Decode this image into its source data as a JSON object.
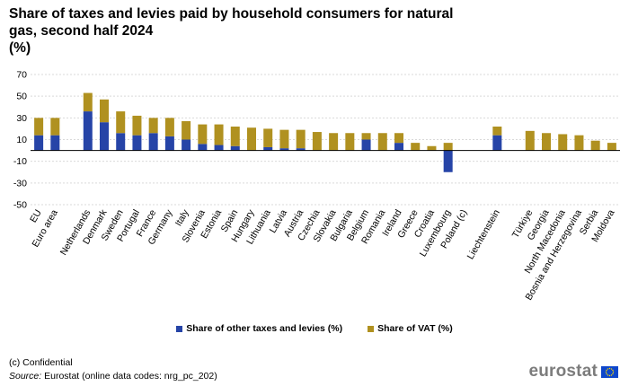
{
  "title": {
    "line1": "Share of taxes and levies paid by household consumers for natural",
    "line2": "gas, second half 2024",
    "line3": "(%)"
  },
  "legend": {
    "other_label": "Share of other taxes and levies (%)",
    "vat_label": "Share of VAT (%)"
  },
  "colors": {
    "other": "#2644a7",
    "vat": "#b09120",
    "grid": "#d9d9d9",
    "axis": "#000000",
    "logo_text": "#7c7c7c",
    "eu_flag": "#0e47cb"
  },
  "footnote": "(c) Confidential",
  "source": {
    "label": "Source:",
    "text": "Eurostat (online data codes: nrg_pc_202)"
  },
  "logo": {
    "text": "eurostat",
    "flag_icon": "eu-flag-icon"
  },
  "chart_data": {
    "type": "bar",
    "stacked": true,
    "categories": [
      "EU",
      "Euro area",
      "",
      "Netherlands",
      "Denmark",
      "Sweden",
      "Portugal",
      "France",
      "Germany",
      "Italy",
      "Slovenia",
      "Estonia",
      "Spain",
      "Hungary",
      "Lithuania",
      "Latvia",
      "Austria",
      "Czechia",
      "Slovakia",
      "Bulgaria",
      "Belgium",
      "Romania",
      "Ireland",
      "Greece",
      "Croatia",
      "Luxembourg",
      "Poland (c)",
      "",
      "Liechtenstein",
      "",
      "Türkiye",
      "Georgia",
      "North Macedonia",
      "Bosnia and Herzegovina",
      "Serbia",
      "Moldova"
    ],
    "series": [
      {
        "name": "Share of other taxes and levies (%)",
        "values": [
          14,
          14,
          null,
          36,
          26,
          16,
          14,
          16,
          13,
          10,
          6,
          5,
          4,
          0,
          3,
          2,
          2,
          0,
          0,
          0,
          10,
          0,
          7,
          0,
          0,
          -20,
          null,
          null,
          14,
          null,
          0,
          0,
          0,
          0,
          0,
          0
        ]
      },
      {
        "name": "Share of VAT (%)",
        "values": [
          16,
          16,
          null,
          17,
          21,
          20,
          18,
          14,
          17,
          17,
          18,
          19,
          18,
          21,
          17,
          17,
          17,
          17,
          16,
          16,
          6,
          16,
          9,
          7,
          4,
          7,
          null,
          null,
          8,
          null,
          18,
          16,
          15,
          14,
          9,
          7
        ]
      }
    ],
    "xlabel": "",
    "ylabel": "",
    "ylim": [
      -50,
      70
    ],
    "yticks": [
      70,
      50,
      30,
      10,
      -10,
      -30,
      -50
    ],
    "grid": true,
    "legend_position": "bottom"
  }
}
